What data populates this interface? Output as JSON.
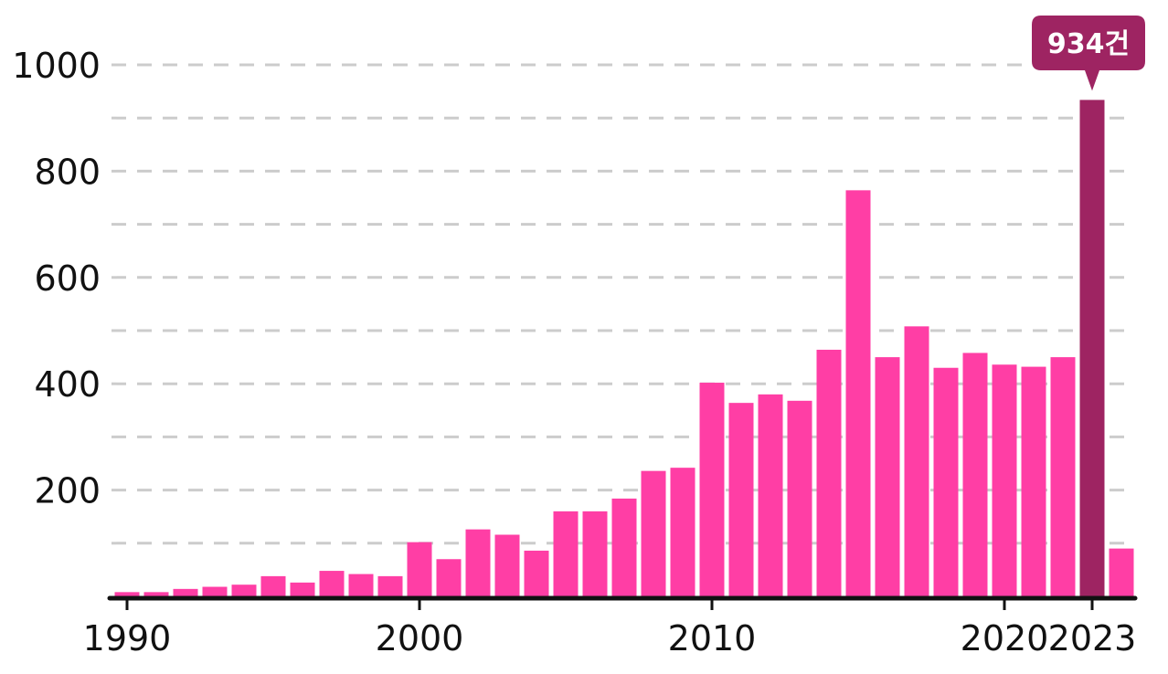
{
  "chart_data": {
    "type": "bar",
    "x": [
      1990,
      1991,
      1992,
      1993,
      1994,
      1995,
      1996,
      1997,
      1998,
      1999,
      2000,
      2001,
      2002,
      2003,
      2004,
      2005,
      2006,
      2007,
      2008,
      2009,
      2010,
      2011,
      2012,
      2013,
      2014,
      2015,
      2016,
      2017,
      2018,
      2019,
      2020,
      2021,
      2022,
      2023,
      2024
    ],
    "values": [
      8,
      8,
      14,
      18,
      22,
      38,
      26,
      48,
      42,
      38,
      102,
      70,
      126,
      116,
      86,
      160,
      160,
      184,
      236,
      242,
      402,
      364,
      380,
      368,
      464,
      764,
      450,
      508,
      430,
      458,
      436,
      432,
      450,
      934,
      90
    ],
    "ylim": [
      0,
      1000
    ],
    "y_ticks": [
      "200",
      "400",
      "600",
      "800",
      "1000"
    ],
    "y_tick_values": [
      200,
      400,
      600,
      800,
      1000
    ],
    "x_ticks": [
      "1990",
      "2000",
      "2010",
      "2020",
      "2023"
    ],
    "x_tick_values": [
      1990,
      2000,
      2010,
      2020,
      2023
    ],
    "grid": "horizontal dashed",
    "highlight": {
      "year": 2023,
      "label": "934건"
    },
    "colors": {
      "bar": "#ff3ea5",
      "highlight": "#9e2462",
      "grid": "#cccccc",
      "axis": "#111111"
    }
  }
}
